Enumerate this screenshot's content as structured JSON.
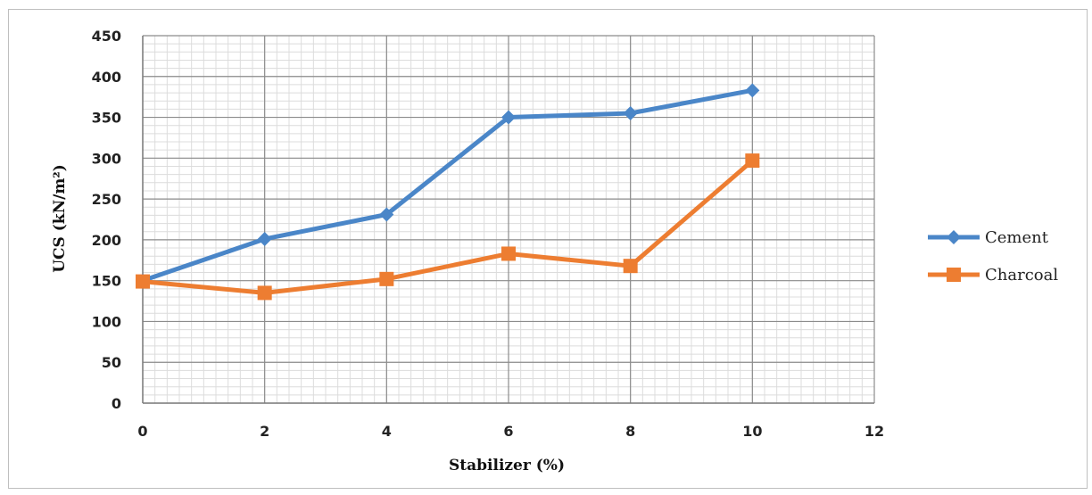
{
  "chart_data": {
    "type": "line",
    "xlabel": "Stabilizer (%)",
    "ylabel": "UCS (kN/m²)",
    "xlim": [
      0,
      12
    ],
    "ylim": [
      0,
      450
    ],
    "x_ticks": [
      0,
      2,
      4,
      6,
      8,
      10,
      12
    ],
    "y_ticks": [
      0,
      50,
      100,
      150,
      200,
      250,
      300,
      350,
      400,
      450
    ],
    "grid": true,
    "legend_position": "right",
    "series": [
      {
        "name": "Cement",
        "color": "#4A86C8",
        "marker": "diamond",
        "x": [
          0,
          2,
          4,
          6,
          8,
          10
        ],
        "y": [
          150,
          201,
          231,
          350,
          355,
          383
        ]
      },
      {
        "name": "Charcoal",
        "color": "#ED7D31",
        "marker": "square",
        "x": [
          0,
          2,
          4,
          6,
          8,
          10
        ],
        "y": [
          149,
          135,
          152,
          183,
          168,
          297
        ]
      }
    ]
  }
}
